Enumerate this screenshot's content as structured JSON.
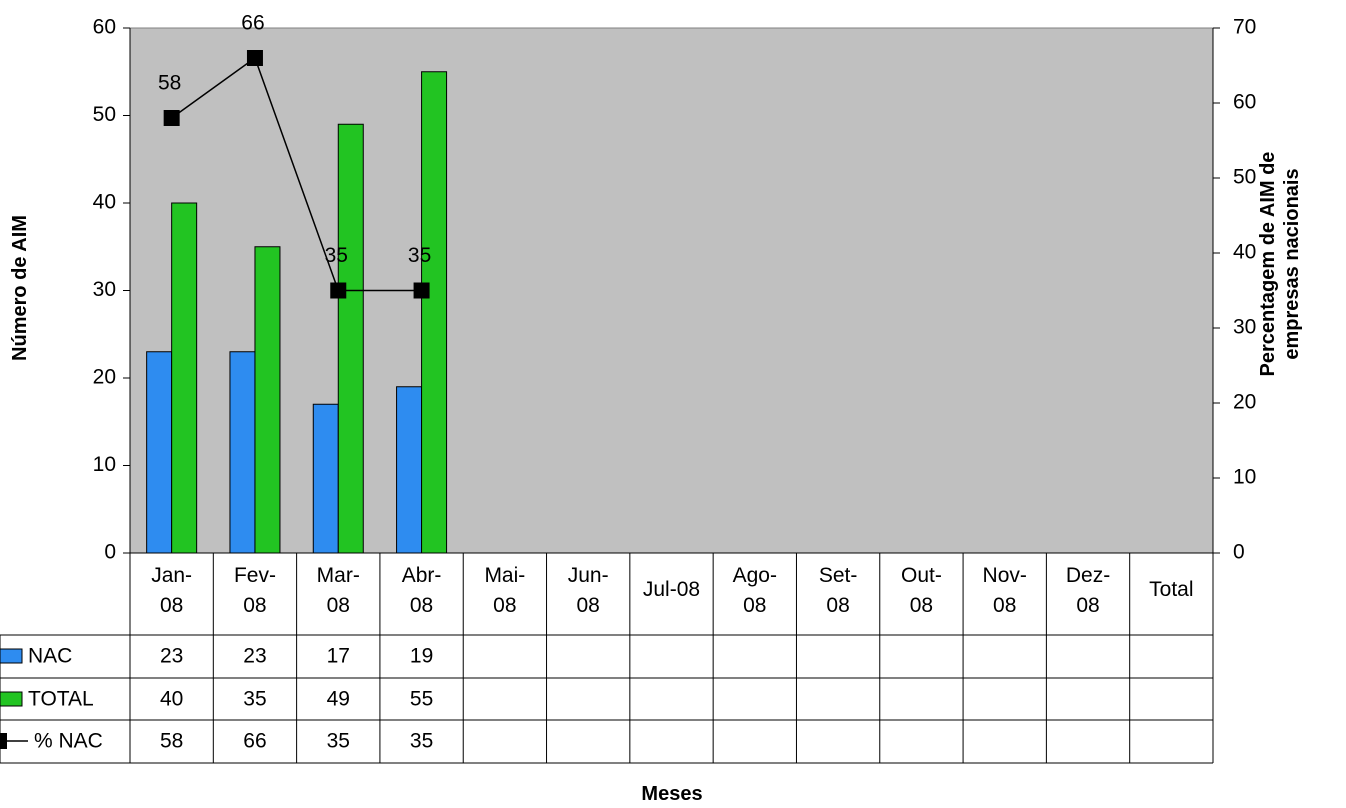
{
  "chart_data": {
    "type": "bar",
    "ylabel": "Número de AIM",
    "y2label": "Percentagem de AIM de empresas nacionais",
    "xlabel": "Meses",
    "categories": [
      "Jan-08",
      "Fev-08",
      "Mar-08",
      "Abr-08",
      "Mai-08",
      "Jun-08",
      "Jul-08",
      "Ago-08",
      "Set-08",
      "Out-08",
      "Nov-08",
      "Dez-08",
      "Total"
    ],
    "series": [
      {
        "name": "NAC",
        "type": "bar",
        "color": "#2e8cf0",
        "values": [
          23,
          23,
          17,
          19,
          null,
          null,
          null,
          null,
          null,
          null,
          null,
          null,
          null
        ]
      },
      {
        "name": "TOTAL",
        "type": "bar",
        "color": "#22c422",
        "values": [
          40,
          35,
          49,
          55,
          null,
          null,
          null,
          null,
          null,
          null,
          null,
          null,
          null
        ]
      },
      {
        "name": "% NAC",
        "type": "line",
        "axis": "y2",
        "color": "#000000",
        "values": [
          58,
          66,
          35,
          35,
          null,
          null,
          null,
          null,
          null,
          null,
          null,
          null,
          null
        ]
      }
    ],
    "ylim": [
      0,
      60
    ],
    "yticks": [
      0,
      10,
      20,
      30,
      40,
      50,
      60
    ],
    "y2lim": [
      0,
      70
    ],
    "y2ticks": [
      0,
      10,
      20,
      30,
      40,
      50,
      60,
      70
    ],
    "plot_background": "#c0c0c0",
    "data_table": true
  }
}
